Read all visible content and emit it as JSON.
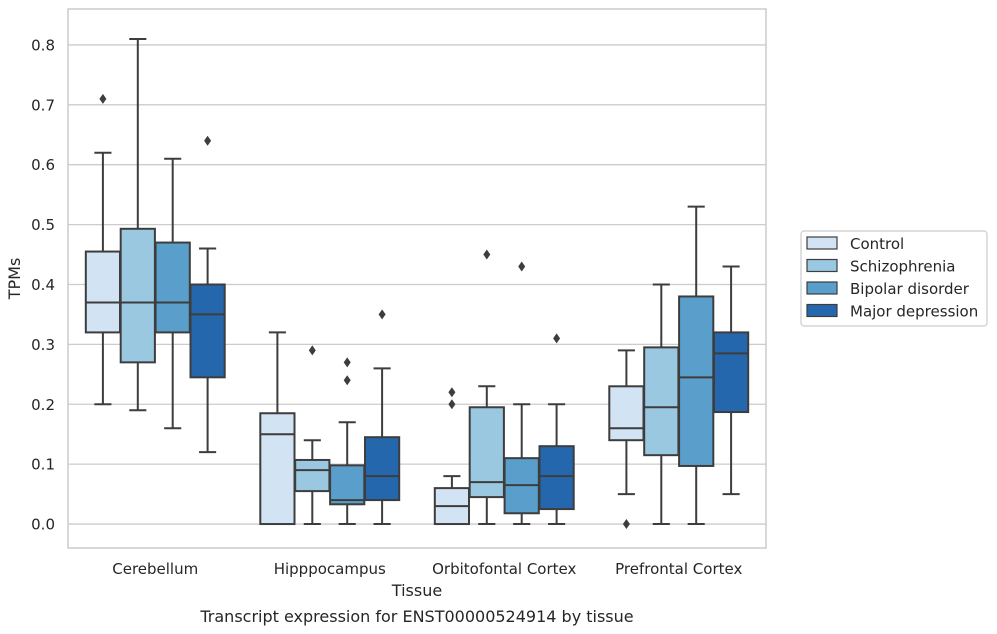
{
  "chart_data": {
    "type": "box",
    "title": "",
    "caption": "Transcript expression for ENST00000524914 by tissue",
    "xlabel": "Tissue",
    "ylabel": "TPMs",
    "ylim": [
      -0.04,
      0.86
    ],
    "yticks": [
      0.0,
      0.1,
      0.2,
      0.3,
      0.4,
      0.5,
      0.6,
      0.7,
      0.8
    ],
    "grid": "horizontal",
    "legend_position": "right",
    "categories": [
      "Cerebellum",
      "Hipppocampus",
      "Orbitofontal Cortex",
      "Prefrontal Cortex"
    ],
    "series": [
      {
        "name": "Control",
        "color": "#d2e3f3",
        "boxes": [
          {
            "whisker_low": 0.2,
            "q1": 0.32,
            "median": 0.37,
            "q3": 0.455,
            "whisker_high": 0.62,
            "outliers": [
              0.71
            ]
          },
          {
            "whisker_low": 0.0,
            "q1": 0.0,
            "median": 0.15,
            "q3": 0.185,
            "whisker_high": 0.32,
            "outliers": []
          },
          {
            "whisker_low": 0.0,
            "q1": 0.0,
            "median": 0.03,
            "q3": 0.06,
            "whisker_high": 0.08,
            "outliers": [
              0.2,
              0.22
            ]
          },
          {
            "whisker_low": 0.05,
            "q1": 0.14,
            "median": 0.16,
            "q3": 0.23,
            "whisker_high": 0.29,
            "outliers": [
              0.0
            ]
          }
        ]
      },
      {
        "name": "Schizophrenia",
        "color": "#9ac8e0",
        "boxes": [
          {
            "whisker_low": 0.19,
            "q1": 0.27,
            "median": 0.37,
            "q3": 0.493,
            "whisker_high": 0.81,
            "outliers": []
          },
          {
            "whisker_low": 0.0,
            "q1": 0.055,
            "median": 0.09,
            "q3": 0.107,
            "whisker_high": 0.14,
            "outliers": [
              0.29
            ]
          },
          {
            "whisker_low": 0.0,
            "q1": 0.045,
            "median": 0.07,
            "q3": 0.195,
            "whisker_high": 0.23,
            "outliers": [
              0.45
            ]
          },
          {
            "whisker_low": 0.0,
            "q1": 0.115,
            "median": 0.195,
            "q3": 0.295,
            "whisker_high": 0.4,
            "outliers": []
          }
        ]
      },
      {
        "name": "Bipolar disorder",
        "color": "#5a9fcc",
        "boxes": [
          {
            "whisker_low": 0.16,
            "q1": 0.32,
            "median": 0.37,
            "q3": 0.47,
            "whisker_high": 0.61,
            "outliers": []
          },
          {
            "whisker_low": 0.0,
            "q1": 0.033,
            "median": 0.04,
            "q3": 0.098,
            "whisker_high": 0.17,
            "outliers": [
              0.24,
              0.27
            ]
          },
          {
            "whisker_low": 0.0,
            "q1": 0.018,
            "median": 0.065,
            "q3": 0.11,
            "whisker_high": 0.2,
            "outliers": [
              0.43
            ]
          },
          {
            "whisker_low": 0.0,
            "q1": 0.097,
            "median": 0.245,
            "q3": 0.38,
            "whisker_high": 0.53,
            "outliers": []
          }
        ]
      },
      {
        "name": "Major depression",
        "color": "#2567ad",
        "boxes": [
          {
            "whisker_low": 0.12,
            "q1": 0.245,
            "median": 0.35,
            "q3": 0.4,
            "whisker_high": 0.46,
            "outliers": [
              0.64
            ]
          },
          {
            "whisker_low": 0.0,
            "q1": 0.04,
            "median": 0.08,
            "q3": 0.145,
            "whisker_high": 0.26,
            "outliers": [
              0.35
            ]
          },
          {
            "whisker_low": 0.0,
            "q1": 0.025,
            "median": 0.08,
            "q3": 0.13,
            "whisker_high": 0.2,
            "outliers": [
              0.31
            ]
          },
          {
            "whisker_low": 0.05,
            "q1": 0.187,
            "median": 0.285,
            "q3": 0.32,
            "whisker_high": 0.43,
            "outliers": []
          }
        ]
      }
    ]
  }
}
